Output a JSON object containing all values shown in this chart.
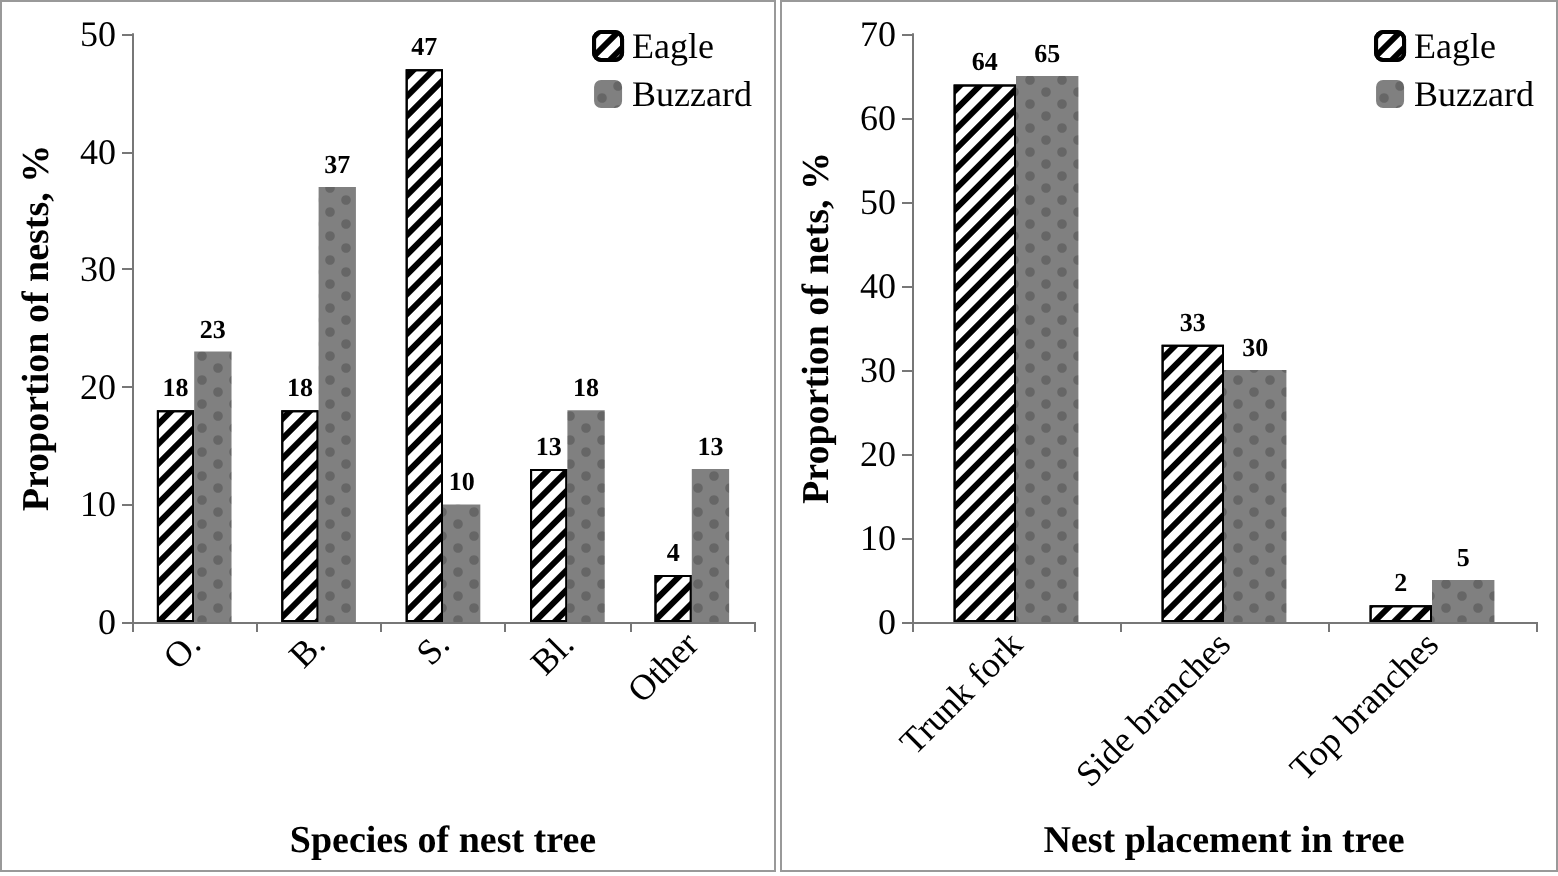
{
  "chart_data": [
    {
      "type": "bar",
      "xlabel": "Species of nest tree",
      "ylabel": "Proportion of nests, %",
      "categories": [
        "O.",
        "B.",
        "S.",
        "Bl.",
        "Other"
      ],
      "series": [
        {
          "name": "Eagle",
          "color": "#ffffff",
          "values": [
            18,
            18,
            47,
            13,
            4
          ]
        },
        {
          "name": "Buzzard",
          "color": "#808080",
          "values": [
            23,
            37,
            10,
            18,
            13
          ]
        }
      ],
      "ylim": [
        0,
        50
      ],
      "yticks": [
        0,
        10,
        20,
        30,
        40,
        50
      ],
      "data_labels": true,
      "legend": "top right",
      "grid": false
    },
    {
      "type": "bar",
      "xlabel": "Nest placement in tree",
      "ylabel": "Proportion of nets, %",
      "categories": [
        "Trunk fork",
        "Side branches",
        "Top branches"
      ],
      "series": [
        {
          "name": "Eagle",
          "color": "#ffffff",
          "values": [
            64,
            33,
            2
          ]
        },
        {
          "name": "Buzzard",
          "color": "#808080",
          "values": [
            65,
            30,
            5
          ]
        }
      ],
      "ylim": [
        0,
        70
      ],
      "yticks": [
        0,
        10,
        20,
        30,
        40,
        50,
        60,
        70
      ],
      "data_labels": true,
      "legend": "top right",
      "grid": false
    }
  ]
}
